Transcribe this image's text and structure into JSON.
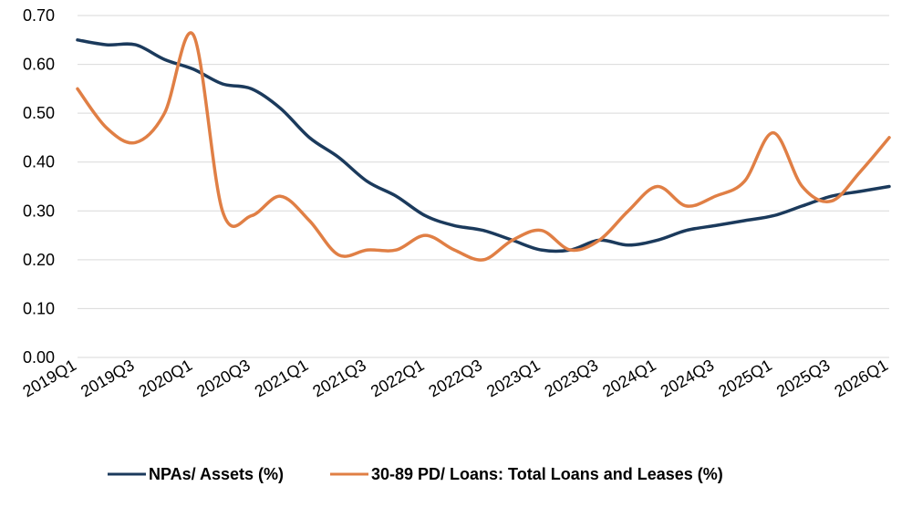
{
  "chart_data": {
    "type": "line",
    "title": "",
    "xlabel": "",
    "ylabel": "",
    "ylim": [
      0,
      0.7
    ],
    "y_ticks": [
      "0.00",
      "0.10",
      "0.20",
      "0.30",
      "0.40",
      "0.50",
      "0.60",
      "0.70"
    ],
    "x": [
      "2019Q1",
      "2019Q2",
      "2019Q3",
      "2019Q4",
      "2020Q1",
      "2020Q2",
      "2020Q3",
      "2020Q4",
      "2021Q1",
      "2021Q2",
      "2021Q3",
      "2021Q4",
      "2022Q1",
      "2022Q2",
      "2022Q3",
      "2022Q4",
      "2023Q1",
      "2023Q2",
      "2023Q3",
      "2023Q4",
      "2024Q1",
      "2024Q2",
      "2024Q3",
      "2024Q4",
      "2025Q1",
      "2025Q2",
      "2025Q3",
      "2025Q4",
      "2026Q1"
    ],
    "x_tick_labels": [
      "2019Q1",
      "2019Q3",
      "2020Q1",
      "2020Q3",
      "2021Q1",
      "2021Q3",
      "2022Q1",
      "2022Q3",
      "2023Q1",
      "2023Q3",
      "2024Q1",
      "2024Q3",
      "2025Q1",
      "2025Q3",
      "2026Q1"
    ],
    "grid": true,
    "legend_position": "bottom",
    "series": [
      {
        "name": "NPAs/ Assets (%)",
        "color": "#1b3a5c",
        "values": [
          0.65,
          0.64,
          0.64,
          0.61,
          0.59,
          0.56,
          0.55,
          0.51,
          0.45,
          0.41,
          0.36,
          0.33,
          0.29,
          0.27,
          0.26,
          0.24,
          0.22,
          0.22,
          0.24,
          0.23,
          0.24,
          0.26,
          0.27,
          0.28,
          0.29,
          0.31,
          0.33,
          0.34,
          0.35
        ]
      },
      {
        "name": "30-89 PD/ Loans: Total Loans and Leases (%)",
        "color": "#e07f45",
        "values": [
          0.55,
          0.47,
          0.44,
          0.5,
          0.66,
          0.3,
          0.29,
          0.33,
          0.28,
          0.21,
          0.22,
          0.22,
          0.25,
          0.22,
          0.2,
          0.24,
          0.26,
          0.22,
          0.24,
          0.3,
          0.35,
          0.31,
          0.33,
          0.36,
          0.46,
          0.35,
          0.32,
          0.38,
          0.45
        ]
      }
    ]
  }
}
